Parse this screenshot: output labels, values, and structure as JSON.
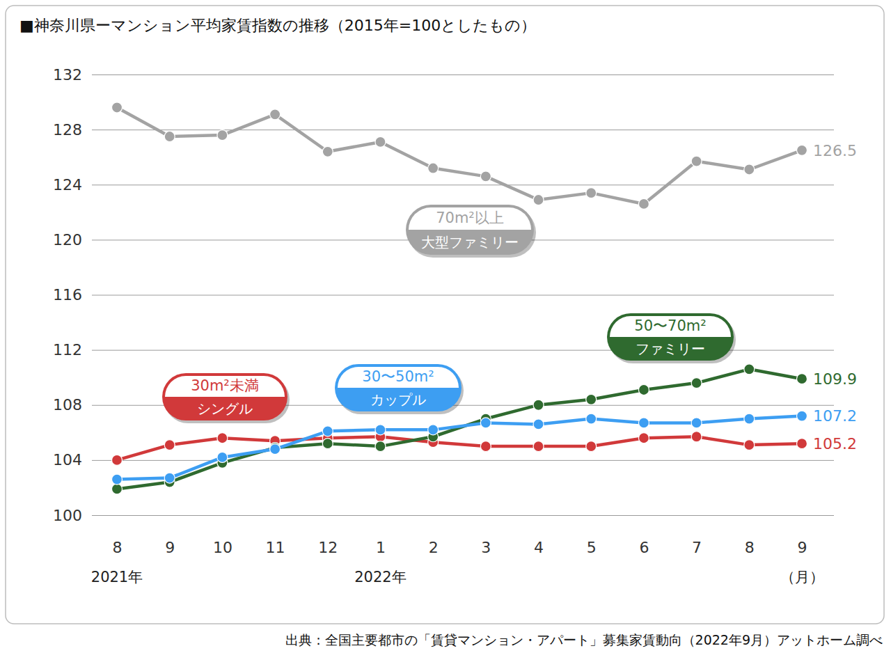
{
  "chart_data": {
    "type": "line",
    "title": "■神奈川県ーマンション平均家賃指数の推移（2015年=100としたもの）",
    "source": "出典：全国主要都市の「賃貸マンション・アパート」募集家賃動向（2022年9月）アットホーム調べ",
    "categories": [
      "8",
      "9",
      "10",
      "11",
      "12",
      "1",
      "2",
      "3",
      "4",
      "5",
      "6",
      "7",
      "8",
      "9"
    ],
    "x_sublabels": [
      "2021年",
      null,
      null,
      null,
      null,
      "2022年",
      null,
      null,
      null,
      null,
      null,
      null,
      null,
      "（月）"
    ],
    "ylim": [
      100,
      132
    ],
    "yticks": [
      100,
      104,
      108,
      112,
      116,
      120,
      124,
      128,
      132
    ],
    "grid": true,
    "marker": "circle",
    "series": [
      {
        "name": "70m²以上\n大型ファミリー",
        "color": "#a3a3a3",
        "values": [
          129.6,
          127.5,
          127.6,
          129.1,
          126.4,
          127.1,
          125.2,
          124.6,
          122.9,
          123.4,
          122.6,
          125.7,
          125.1,
          126.5
        ],
        "value_labels": [
          null,
          null,
          null,
          null,
          null,
          null,
          null,
          null,
          null,
          null,
          null,
          null,
          null,
          "126.5"
        ]
      },
      {
        "name": "30m²未満\nシングル",
        "color": "#d1393a",
        "values": [
          104.0,
          105.1,
          105.6,
          105.4,
          105.6,
          105.7,
          105.3,
          105.0,
          105.0,
          105.0,
          105.6,
          105.7,
          105.1,
          105.2
        ],
        "value_labels": [
          null,
          null,
          null,
          null,
          null,
          null,
          null,
          null,
          null,
          null,
          null,
          null,
          null,
          "105.2"
        ]
      },
      {
        "name": "50〜70m²\nファミリー",
        "color": "#2f6a2f",
        "values": [
          101.9,
          102.4,
          103.8,
          104.9,
          105.2,
          105.0,
          105.7,
          107.0,
          108.0,
          108.4,
          109.1,
          109.6,
          110.6,
          109.9
        ],
        "value_labels": [
          null,
          null,
          null,
          null,
          null,
          null,
          null,
          null,
          null,
          null,
          null,
          null,
          null,
          "109.9"
        ]
      },
      {
        "name": "30〜50m²\nカップル",
        "color": "#3d9ef2",
        "values": [
          102.6,
          102.7,
          104.2,
          104.8,
          106.1,
          106.2,
          106.2,
          106.7,
          106.6,
          107.0,
          106.7,
          106.7,
          107.0,
          107.2
        ],
        "value_labels": [
          null,
          null,
          null,
          null,
          null,
          null,
          null,
          null,
          null,
          null,
          null,
          null,
          null,
          "107.2"
        ]
      }
    ]
  }
}
